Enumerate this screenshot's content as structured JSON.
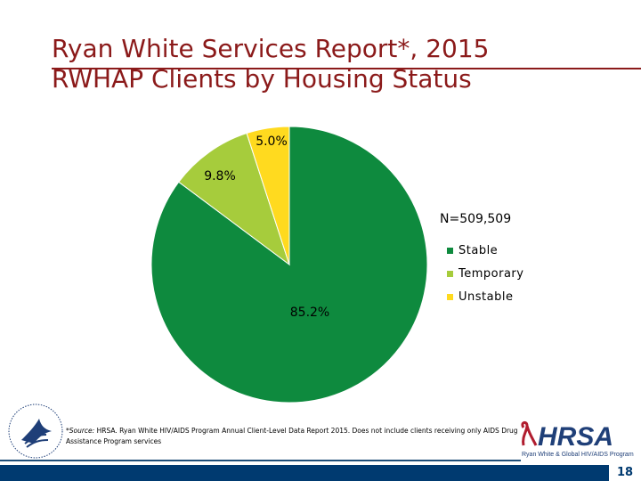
{
  "title": {
    "line1": "Ryan White Services Report*, 2015",
    "line2": "RWHAP Clients by Housing Status"
  },
  "chart_data": {
    "type": "pie",
    "title": "RWHAP Clients by Housing Status",
    "categories": [
      "Stable",
      "Temporary",
      "Unstable"
    ],
    "values": [
      85.2,
      9.8,
      5.0
    ],
    "labels": [
      "85.2%",
      "9.8%",
      "5.0%"
    ],
    "colors": [
      "#0e8a3e",
      "#a6cc3c",
      "#ffda1f"
    ],
    "n_label": "N=509,509",
    "legend_position": "right"
  },
  "footnote": {
    "source_label": "*Source:",
    "text": "HRSA. Ryan White HIV/AIDS Program Annual Client-Level Data Report 2015. Does not include clients receiving only AIDS Drug Assistance Program services"
  },
  "logo": {
    "hrsa": "HRSA",
    "hrsa_sub": "Ryan White & Global HIV/AIDS Program"
  },
  "page_number": "18"
}
